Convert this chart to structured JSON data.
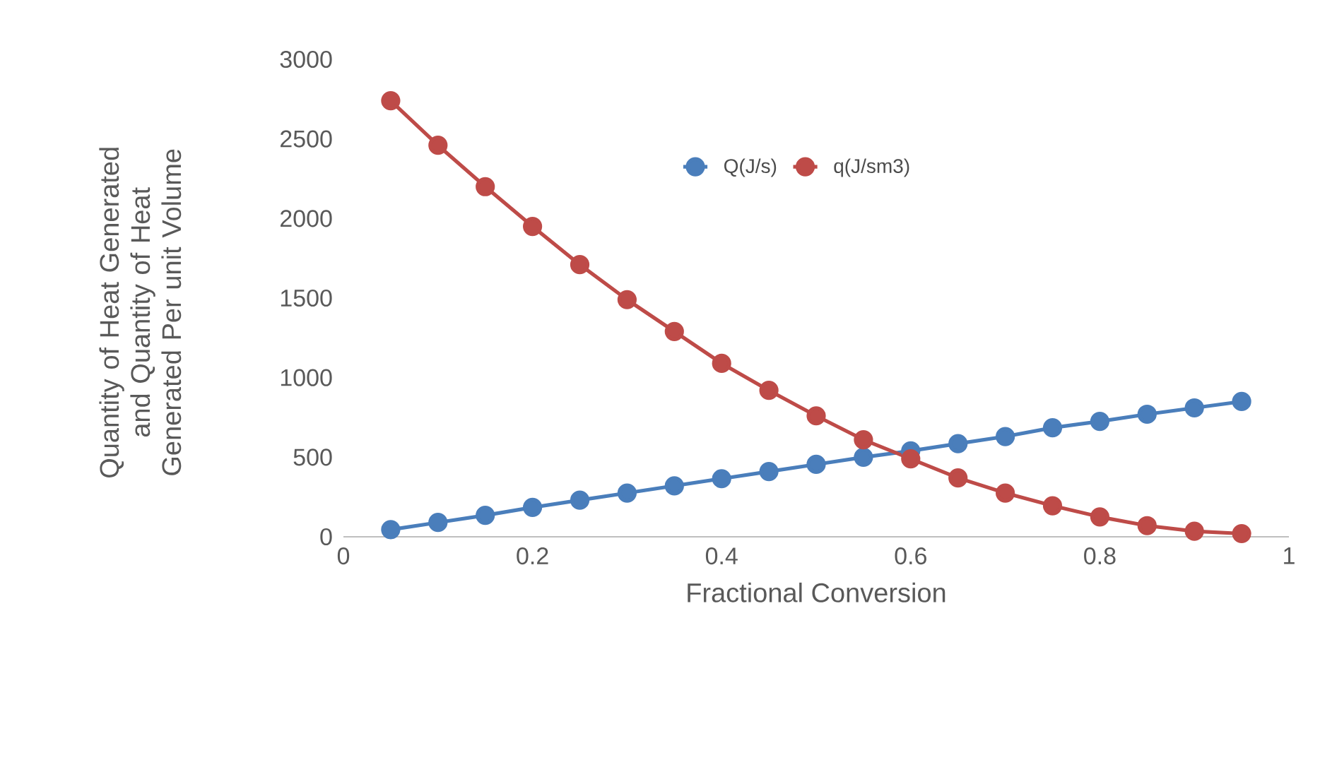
{
  "chart_data": {
    "type": "line",
    "xlabel": "Fractional Conversion",
    "ylabel": "Quantity of Heat Generated and Quantity of Heat Generated Per unit Volume",
    "x": [
      0.05,
      0.1,
      0.15,
      0.2,
      0.25,
      0.3,
      0.35,
      0.4,
      0.45,
      0.5,
      0.55,
      0.6,
      0.65,
      0.7,
      0.75,
      0.8,
      0.85,
      0.9,
      0.95
    ],
    "series": [
      {
        "name": "Q(J/s)",
        "color": "#4a7ebb",
        "values": [
          45,
          90,
          135,
          185,
          230,
          275,
          320,
          365,
          410,
          455,
          500,
          540,
          585,
          630,
          685,
          725,
          770,
          810,
          850
        ]
      },
      {
        "name": "q(J/sm3)",
        "color": "#be4b48",
        "values": [
          2740,
          2460,
          2200,
          1950,
          1710,
          1490,
          1290,
          1090,
          920,
          760,
          610,
          490,
          370,
          275,
          195,
          125,
          70,
          35,
          20
        ]
      }
    ],
    "xlim": [
      0,
      1
    ],
    "xticks": [
      0,
      0.2,
      0.4,
      0.6,
      0.8,
      1
    ],
    "ylim": [
      0,
      3000
    ],
    "yticks": [
      0,
      500,
      1000,
      1500,
      2000,
      2500,
      3000
    ],
    "grid": false,
    "legend": "top",
    "marker": "circle",
    "line_style": "solid"
  }
}
